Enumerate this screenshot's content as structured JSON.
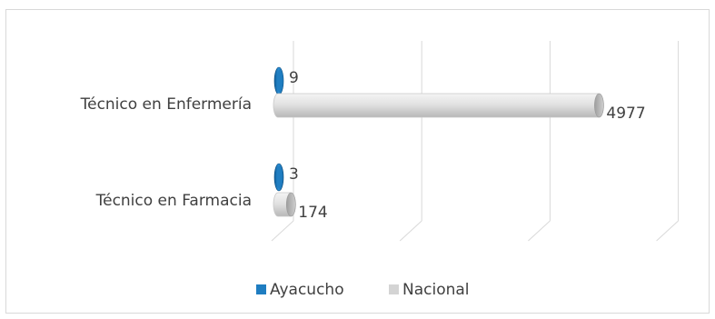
{
  "chart_data": {
    "type": "bar",
    "orientation": "horizontal",
    "style": "3d-cylinder",
    "categories": [
      "Técnico en Enfermería",
      "Técnico en Farmacia"
    ],
    "series": [
      {
        "name": "Ayacucho",
        "values": [
          9,
          3
        ],
        "color": "#1f7dc1"
      },
      {
        "name": "Nacional",
        "values": [
          4977,
          174
        ],
        "color": "#d4d4d4"
      }
    ],
    "data_labels": {
      "Ayacucho": [
        "9",
        "3"
      ],
      "Nacional": [
        "4977",
        "174"
      ]
    },
    "xlim": [
      0,
      6000
    ],
    "grid": true,
    "legend_position": "bottom"
  }
}
